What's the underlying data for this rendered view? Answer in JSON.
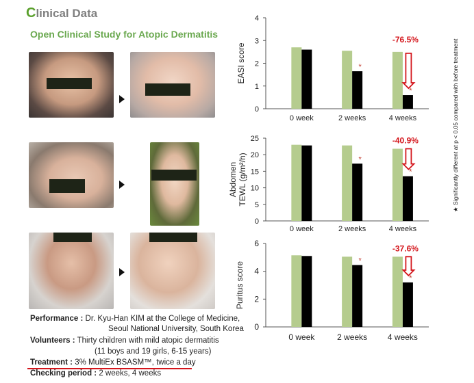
{
  "header": {
    "title_first": "C",
    "title_rest": "linical Data",
    "subtitle": "Open Clinical Study for Atopic Dermatitis"
  },
  "study_info": {
    "performance_label": "Performance :",
    "performance_value_1": "Dr. Kyu-Han KIM at the College of Medicine,",
    "performance_value_2": "Seoul National University, South Korea",
    "volunteers_label": "Volunteers :",
    "volunteers_value_1": "Thirty children with mild atopic dermatitis",
    "volunteers_value_2": "(11 boys and 19 girls, 6-15 years)",
    "treatment_label": "Treatment :",
    "treatment_value": "3% MultiEx BSASM™, twice a day",
    "checking_label": "Checking period :",
    "checking_value": "2 weeks, 4 weeks"
  },
  "significance_note": "★ Significantly different at p < 0.05 compared with before treatment",
  "colors": {
    "before": "#b5cc8e",
    "after": "#000000",
    "highlight": "#d4151b",
    "star": "#c0392b"
  },
  "chart_data": [
    {
      "type": "bar",
      "ylabel": "EASI score",
      "categories": [
        "0 week",
        "2 weeks",
        "4 weeks"
      ],
      "series": [
        {
          "values": [
            2.7,
            2.55,
            2.5
          ]
        },
        {
          "values": [
            2.6,
            1.65,
            0.6
          ]
        }
      ],
      "ylim": [
        0,
        4
      ],
      "yticks": [
        "0",
        "1",
        "2",
        "3",
        "4"
      ],
      "significant": [
        false,
        true,
        true
      ],
      "annotation": "-76.5%"
    },
    {
      "type": "bar",
      "ylabel": "Abdomen TEWL (g/m²/h)",
      "categories": [
        "0 week",
        "2 weeks",
        "4 weeks"
      ],
      "series": [
        {
          "values": [
            23,
            22.8,
            21.8
          ]
        },
        {
          "values": [
            22.8,
            17.3,
            13.5
          ]
        }
      ],
      "ylim": [
        0,
        25
      ],
      "yticks": [
        "0",
        "5",
        "10",
        "15",
        "20",
        "25"
      ],
      "significant": [
        false,
        true,
        true
      ],
      "annotation": "-40.9%"
    },
    {
      "type": "bar",
      "ylabel": "Puritus score",
      "categories": [
        "0 week",
        "2 weeks",
        "4 weeks"
      ],
      "series": [
        {
          "values": [
            5.15,
            5.05,
            5.05
          ]
        },
        {
          "values": [
            5.1,
            4.45,
            3.2
          ]
        }
      ],
      "ylim": [
        0,
        6
      ],
      "yticks": [
        "0",
        "2",
        "4",
        "6"
      ],
      "significant": [
        false,
        true,
        true
      ],
      "annotation": "-37.6%"
    }
  ]
}
